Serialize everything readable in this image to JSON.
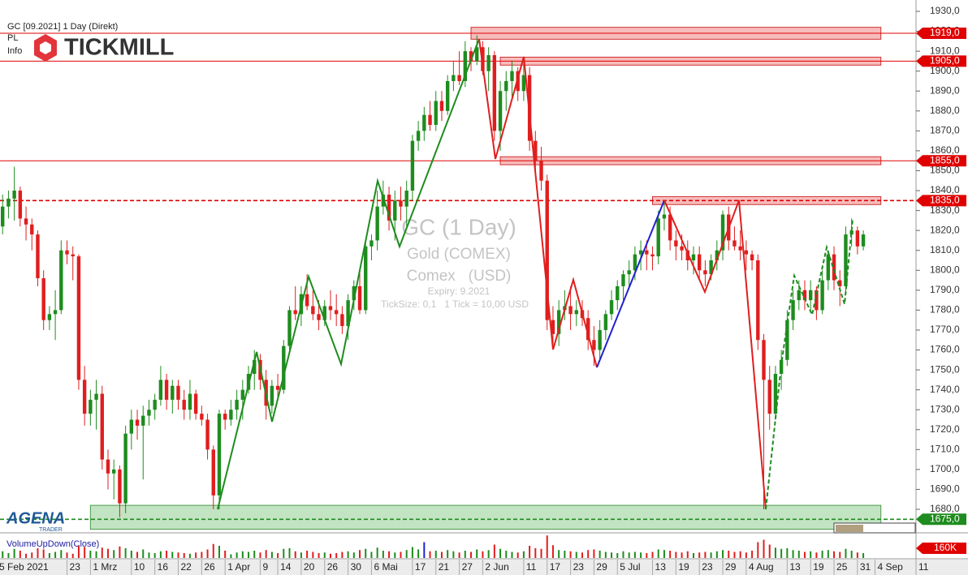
{
  "chart_data": {
    "type": "candlestick",
    "title": "GC [09.2021] 1 Day (Direkt)",
    "menu": [
      "PL",
      "Info"
    ],
    "brand": "TICKMILL",
    "watermark": [
      "GC (1 Day)",
      "Gold (COMEX)",
      "Comex   (USD)",
      "Expiry: 9.2021",
      "TickSize: 0,1   1 Tick = 10,00 USD"
    ],
    "footer_brand": [
      "AGENA",
      "TRADER"
    ],
    "up_color": "#1e8c1e",
    "down_color": "#e01e1e",
    "categories": [
      "5 Feb 2021",
      null,
      null,
      null,
      null,
      null,
      null,
      null,
      null,
      null,
      null,
      null,
      "23",
      null,
      null,
      null,
      "1 Mrz",
      null,
      null,
      null,
      null,
      null,
      null,
      "10",
      null,
      null,
      null,
      "16",
      null,
      null,
      null,
      "22",
      null,
      null,
      null,
      "26",
      null,
      null,
      null,
      "1 Apr",
      null,
      null,
      null,
      null,
      null,
      "9",
      null,
      null,
      "14",
      null,
      null,
      null,
      "20",
      null,
      null,
      null,
      "26",
      null,
      null,
      null,
      "30",
      null,
      null,
      null,
      "6 Mai",
      null,
      null,
      null,
      null,
      null,
      null,
      "17",
      null,
      null,
      null,
      "21",
      null,
      null,
      null,
      "27",
      null,
      null,
      null,
      "2 Jun",
      null,
      null,
      null,
      null,
      null,
      null,
      "11",
      null,
      null,
      null,
      "17",
      null,
      null,
      null,
      "23",
      null,
      null,
      null,
      "29",
      null,
      null,
      null,
      "5 Jul",
      null,
      null,
      null,
      null,
      null,
      "13",
      null,
      null,
      null,
      "19",
      null,
      null,
      null,
      "23",
      null,
      null,
      null,
      "29",
      null,
      null,
      null,
      "4 Aug",
      null,
      null,
      null,
      null,
      null,
      null,
      "13",
      null,
      null,
      null,
      "19",
      null,
      null,
      null,
      "25",
      null,
      null,
      null,
      "31",
      null,
      null,
      "4 Sep",
      null,
      null,
      null,
      null,
      null,
      null,
      "11"
    ],
    "open": [
      1810,
      1822,
      1832,
      1836,
      1840,
      1826,
      1823,
      1818,
      1796,
      1775,
      1778,
      1780,
      1810,
      1808,
      1807,
      1745,
      1728,
      1735,
      1738,
      1705,
      1698,
      1700,
      1683,
      1718,
      1725,
      1722,
      1727,
      1730,
      1735,
      1745,
      1735,
      1742,
      1735,
      1730,
      1738,
      1728,
      1725,
      1710,
      1687,
      1728,
      1725,
      1730,
      1735,
      1740,
      1748,
      1755,
      1745,
      1732,
      1742,
      1740,
      1762,
      1780,
      1778,
      1788,
      1782,
      1778,
      1775,
      1782,
      1780,
      1778,
      1772,
      1785,
      1792,
      1780,
      1812,
      1815,
      1832,
      1838,
      1825,
      1835,
      1832,
      1840,
      1865,
      1870,
      1878,
      1873,
      1885,
      1880,
      1895,
      1898,
      1895,
      1910,
      1905,
      1912,
      1900,
      1908,
      1870,
      1890,
      1895,
      1900,
      1890,
      1898,
      1865,
      1855,
      1845,
      1775,
      1768,
      1780,
      1782,
      1778,
      1780,
      1776,
      1765,
      1760,
      1770,
      1778,
      1785,
      1792,
      1798,
      1800,
      1808,
      1810,
      1808,
      1807,
      1826,
      1828,
      1815,
      1812,
      1810,
      1805,
      1808,
      1800,
      1798,
      1805,
      1810,
      1828,
      1815,
      1812,
      1810,
      1808,
      1805,
      1765,
      1745,
      1728,
      1748,
      1755,
      1775,
      1785,
      1790,
      1785,
      1790,
      1780,
      1795,
      1808,
      1795,
      1792,
      1818,
      1820,
      1812,
      null,
      null,
      null,
      null,
      null,
      null,
      null,
      null,
      null
    ],
    "high": [
      1825,
      1838,
      1840,
      1852,
      1842,
      1832,
      1826,
      1820,
      1800,
      1782,
      1790,
      1815,
      1815,
      1812,
      1808,
      1752,
      1740,
      1745,
      1742,
      1710,
      1705,
      1702,
      1722,
      1730,
      1730,
      1732,
      1735,
      1738,
      1752,
      1748,
      1745,
      1745,
      1740,
      1745,
      1740,
      1732,
      1728,
      1712,
      1730,
      1730,
      1735,
      1740,
      1745,
      1752,
      1760,
      1758,
      1750,
      1745,
      1748,
      1765,
      1782,
      1792,
      1792,
      1798,
      1790,
      1785,
      1785,
      1790,
      1788,
      1782,
      1788,
      1795,
      1800,
      1815,
      1818,
      1840,
      1845,
      1842,
      1840,
      1842,
      1845,
      1868,
      1875,
      1882,
      1885,
      1890,
      1890,
      1898,
      1905,
      1910,
      1915,
      1912,
      1918,
      1915,
      1912,
      1910,
      1895,
      1900,
      1905,
      1902,
      1905,
      1902,
      1870,
      1862,
      1848,
      1782,
      1785,
      1790,
      1792,
      1785,
      1785,
      1780,
      1772,
      1775,
      1780,
      1790,
      1795,
      1800,
      1805,
      1812,
      1815,
      1815,
      1812,
      1830,
      1835,
      1832,
      1820,
      1818,
      1815,
      1812,
      1812,
      1805,
      1808,
      1815,
      1830,
      1832,
      1822,
      1820,
      1815,
      1810,
      1808,
      1768,
      1752,
      1752,
      1760,
      1780,
      1790,
      1795,
      1795,
      1795,
      1792,
      1800,
      1810,
      1812,
      1800,
      1822,
      1826,
      1822,
      1820,
      null,
      null,
      null,
      null,
      null,
      null,
      null,
      null,
      null
    ],
    "low": [
      1805,
      1818,
      1826,
      1825,
      1822,
      1815,
      1810,
      1792,
      1770,
      1770,
      1765,
      1778,
      1803,
      1795,
      1740,
      1722,
      1722,
      1720,
      1700,
      1690,
      1685,
      1676,
      1678,
      1710,
      1715,
      1695,
      1722,
      1725,
      1732,
      1730,
      1728,
      1730,
      1725,
      1725,
      1725,
      1722,
      1705,
      1680,
      1680,
      1720,
      1722,
      1725,
      1725,
      1738,
      1740,
      1740,
      1725,
      1728,
      1735,
      1738,
      1758,
      1775,
      1772,
      1780,
      1775,
      1770,
      1772,
      1775,
      1772,
      1768,
      1765,
      1780,
      1778,
      1778,
      1805,
      1810,
      1828,
      1820,
      1815,
      1825,
      1822,
      1835,
      1860,
      1865,
      1870,
      1870,
      1875,
      1878,
      1890,
      1893,
      1892,
      1900,
      1903,
      1898,
      1890,
      1865,
      1860,
      1880,
      1885,
      1885,
      1885,
      1860,
      1848,
      1840,
      1770,
      1762,
      1762,
      1775,
      1770,
      1772,
      1772,
      1760,
      1752,
      1755,
      1765,
      1775,
      1780,
      1785,
      1792,
      1795,
      1800,
      1800,
      1800,
      1803,
      1820,
      1810,
      1805,
      1805,
      1800,
      1798,
      1795,
      1792,
      1795,
      1800,
      1805,
      1810,
      1810,
      1805,
      1800,
      1800,
      1760,
      1680,
      1720,
      1725,
      1740,
      1752,
      1770,
      1780,
      1780,
      1780,
      1775,
      1778,
      1790,
      1790,
      1782,
      1788,
      1812,
      1808,
      1810,
      null,
      null,
      null,
      null,
      null,
      null,
      null,
      null,
      null
    ],
    "close": [
      1822,
      1832,
      1836,
      1840,
      1826,
      1823,
      1818,
      1796,
      1775,
      1778,
      1780,
      1810,
      1808,
      1807,
      1745,
      1728,
      1735,
      1738,
      1705,
      1698,
      1700,
      1683,
      1718,
      1725,
      1722,
      1727,
      1730,
      1735,
      1745,
      1735,
      1742,
      1735,
      1730,
      1738,
      1728,
      1725,
      1710,
      1687,
      1728,
      1725,
      1730,
      1735,
      1740,
      1748,
      1755,
      1745,
      1732,
      1742,
      1740,
      1762,
      1780,
      1778,
      1788,
      1782,
      1778,
      1775,
      1782,
      1780,
      1778,
      1772,
      1785,
      1792,
      1780,
      1812,
      1815,
      1832,
      1838,
      1825,
      1835,
      1832,
      1840,
      1865,
      1870,
      1878,
      1873,
      1885,
      1880,
      1895,
      1898,
      1895,
      1910,
      1905,
      1912,
      1900,
      1908,
      1870,
      1890,
      1895,
      1900,
      1890,
      1898,
      1865,
      1855,
      1845,
      1775,
      1768,
      1780,
      1782,
      1778,
      1780,
      1776,
      1765,
      1760,
      1770,
      1778,
      1785,
      1792,
      1798,
      1800,
      1808,
      1810,
      1808,
      1807,
      1826,
      1828,
      1815,
      1812,
      1810,
      1805,
      1808,
      1800,
      1798,
      1805,
      1810,
      1828,
      1815,
      1812,
      1810,
      1808,
      1805,
      1765,
      1745,
      1728,
      1748,
      1755,
      1775,
      1785,
      1790,
      1785,
      1790,
      1780,
      1795,
      1808,
      1795,
      1792,
      1818,
      1820,
      1812,
      1818,
      null,
      null,
      null,
      null,
      null,
      null,
      null,
      null,
      null
    ],
    "ylim": [
      1668.6,
      1935.7
    ],
    "yticks": [
      {
        "value": 1680,
        "label": "1680,0"
      },
      {
        "value": 1690,
        "label": "1690,0"
      },
      {
        "value": 1700,
        "label": "1700,0"
      },
      {
        "value": 1710,
        "label": "1710,0"
      },
      {
        "value": 1720,
        "label": "1720,0"
      },
      {
        "value": 1730,
        "label": "1730,0"
      },
      {
        "value": 1740,
        "label": "1740,0"
      },
      {
        "value": 1750,
        "label": "1750,0"
      },
      {
        "value": 1760,
        "label": "1760,0"
      },
      {
        "value": 1770,
        "label": "1770,0"
      },
      {
        "value": 1780,
        "label": "1780,0"
      },
      {
        "value": 1790,
        "label": "1790,0"
      },
      {
        "value": 1800,
        "label": "1800,0"
      },
      {
        "value": 1810,
        "label": "1810,0"
      },
      {
        "value": 1820,
        "label": "1820,0"
      },
      {
        "value": 1830,
        "label": "1830,0"
      },
      {
        "value": 1840,
        "label": "1840,0"
      },
      {
        "value": 1850,
        "label": "1850,0"
      },
      {
        "value": 1860,
        "label": "1860,0"
      },
      {
        "value": 1870,
        "label": "1870,0"
      },
      {
        "value": 1880,
        "label": "1880,0"
      },
      {
        "value": 1890,
        "label": "1890,0"
      },
      {
        "value": 1900,
        "label": "1900,0"
      },
      {
        "value": 1910,
        "label": "1910,0"
      },
      {
        "value": 1920,
        "label": "1920,0"
      },
      {
        "value": 1930,
        "label": "1930,0"
      }
    ],
    "levels": [
      {
        "value": 1919,
        "label": "1919,0",
        "color": "#e00000",
        "dashed": false
      },
      {
        "value": 1905,
        "label": "1905,0",
        "color": "#e00000",
        "dashed": false
      },
      {
        "value": 1855,
        "label": "1855,0",
        "color": "#e00000",
        "dashed": false
      },
      {
        "value": 1835,
        "label": "1835,0",
        "color": "#e00000",
        "dashed": true
      },
      {
        "value": 1675,
        "label": "1675,0",
        "color": "#1e8c1e",
        "dashed": true
      }
    ],
    "zones": [
      {
        "low": 1916,
        "high": 1922,
        "start": 81,
        "end": 151,
        "color": "#f4a0a0"
      },
      {
        "low": 1903,
        "high": 1907,
        "start": 86,
        "end": 151,
        "color": "#f4a0a0"
      },
      {
        "low": 1853,
        "high": 1857,
        "start": 86,
        "end": 151,
        "color": "#f4a0a0"
      },
      {
        "low": 1833,
        "high": 1837,
        "start": 112,
        "end": 151,
        "color": "#f4a0a0"
      },
      {
        "low": 1670,
        "high": 1682,
        "start": 16,
        "end": 151,
        "color": "#a8d8a8"
      }
    ],
    "volume": {
      "name": "VolumeUpDown(Close)",
      "flag_color": "#2020d0",
      "flagged": [
        73
      ],
      "ylim": [
        0,
        400000
      ],
      "yticks": [
        {
          "value": 160000,
          "label": "160K"
        }
      ],
      "values": [
        90000,
        110000,
        80000,
        150000,
        120000,
        70000,
        90000,
        160000,
        140000,
        80000,
        100000,
        130000,
        90000,
        70000,
        200000,
        180000,
        120000,
        110000,
        170000,
        150000,
        130000,
        190000,
        160000,
        120000,
        100000,
        140000,
        90000,
        80000,
        110000,
        120000,
        100000,
        90000,
        80000,
        70000,
        90000,
        100000,
        140000,
        230000,
        200000,
        120000,
        60000,
        90000,
        110000,
        100000,
        120000,
        90000,
        130000,
        100000,
        80000,
        150000,
        160000,
        110000,
        90000,
        120000,
        100000,
        80000,
        90000,
        70000,
        80000,
        100000,
        110000,
        90000,
        130000,
        150000,
        100000,
        170000,
        120000,
        110000,
        90000,
        100000,
        130000,
        180000,
        140000,
        260000,
        110000,
        120000,
        100000,
        130000,
        110000,
        90000,
        120000,
        100000,
        140000,
        110000,
        130000,
        220000,
        150000,
        120000,
        100000,
        90000,
        110000,
        200000,
        160000,
        150000,
        370000,
        210000,
        130000,
        120000,
        110000,
        100000,
        90000,
        130000,
        140000,
        120000,
        100000,
        90000,
        80000,
        110000,
        90000,
        100000,
        90000,
        80000,
        100000,
        140000,
        130000,
        120000,
        100000,
        90000,
        110000,
        80000,
        90000,
        100000,
        90000,
        110000,
        130000,
        120000,
        100000,
        110000,
        90000,
        120000,
        260000,
        300000,
        220000,
        170000,
        150000,
        160000,
        130000,
        120000,
        100000,
        110000,
        90000,
        120000,
        130000,
        110000,
        100000,
        150000,
        120000,
        90000,
        80000
      ]
    }
  }
}
